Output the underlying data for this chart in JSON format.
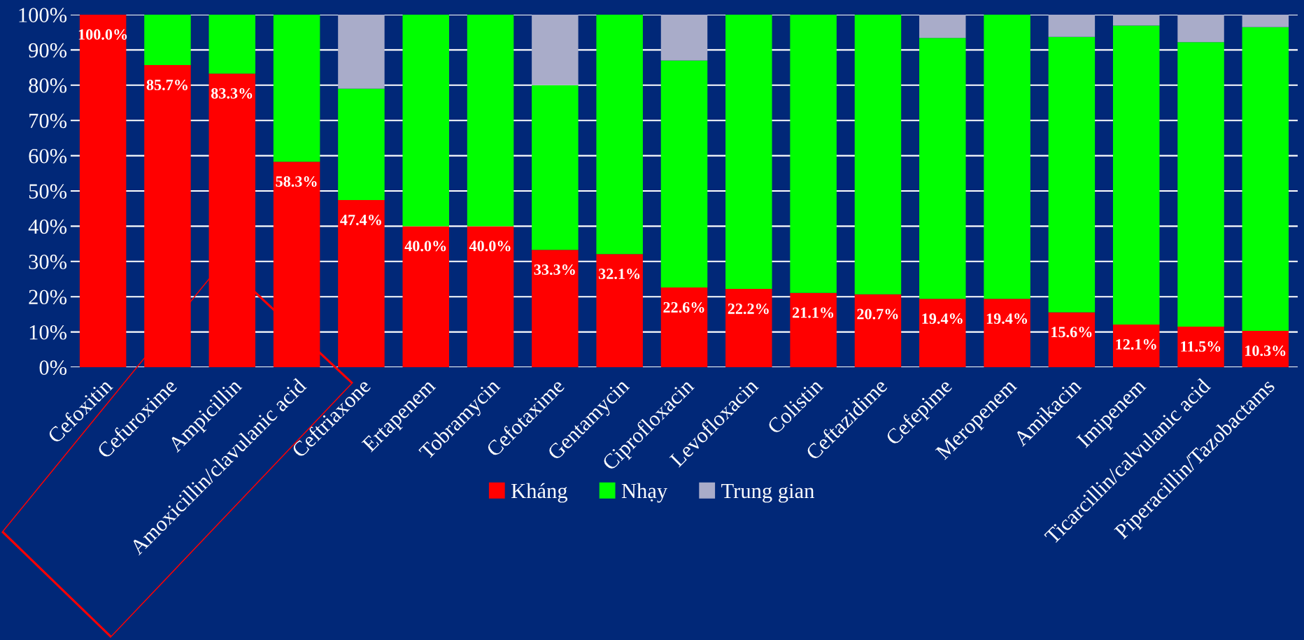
{
  "chart_data": {
    "type": "bar",
    "stacked": true,
    "categories": [
      "Cefoxitin",
      "Cefuroxime",
      "Ampicillin",
      "Amoxicillin/clavulanic acid",
      "Ceftriaxone",
      "Ertapenem",
      "Tobramycin",
      "Cefotaxime",
      "Gentamycin",
      "Ciprofloxacin",
      "Levofloxacin",
      "Colistin",
      "Ceftazidime",
      "Cefepime",
      "Meropenem",
      "Amikacin",
      "Imipenem",
      "Ticarcillin/calvulanic acid",
      "Piperacillin/Tazobactams"
    ],
    "series": [
      {
        "name": "Kháng",
        "color": "#ff0000",
        "values": [
          100.0,
          85.7,
          83.3,
          58.3,
          47.4,
          40.0,
          40.0,
          33.3,
          32.1,
          22.6,
          22.2,
          21.1,
          20.7,
          19.4,
          19.4,
          15.6,
          12.1,
          11.5,
          10.3
        ],
        "value_labels": [
          "100.0%",
          "85.7%",
          "83.3%",
          "58.3%",
          "47.4%",
          "40.0%",
          "40.0%",
          "33.3%",
          "32.1%",
          "22.6%",
          "22.2%",
          "21.1%",
          "20.7%",
          "19.4%",
          "19.4%",
          "15.6%",
          "12.1%",
          "11.5%",
          "10.3%"
        ]
      },
      {
        "name": "Nhạy",
        "color": "#00ff00",
        "values": [
          0,
          14.3,
          16.7,
          41.7,
          31.6,
          60.0,
          60.0,
          46.7,
          67.9,
          64.4,
          77.8,
          78.9,
          79.3,
          74.0,
          80.6,
          78.1,
          84.8,
          80.7,
          86.2
        ]
      },
      {
        "name": "Trung gian",
        "color": "#a9acc9",
        "values": [
          0,
          0,
          0,
          0,
          21.0,
          0,
          0,
          20.0,
          0,
          13.0,
          0,
          0,
          0,
          6.6,
          0,
          6.3,
          3.1,
          7.8,
          3.5
        ]
      }
    ],
    "ylim": [
      0,
      100
    ],
    "yticks": [
      {
        "value": 0,
        "label": "0%"
      },
      {
        "value": 10,
        "label": "10%"
      },
      {
        "value": 20,
        "label": "20%"
      },
      {
        "value": 30,
        "label": "30%"
      },
      {
        "value": 40,
        "label": "40%"
      },
      {
        "value": 50,
        "label": "50%"
      },
      {
        "value": 60,
        "label": "60%"
      },
      {
        "value": 70,
        "label": "70%"
      },
      {
        "value": 80,
        "label": "80%"
      },
      {
        "value": 90,
        "label": "90%"
      },
      {
        "value": 100,
        "label": "100%"
      }
    ],
    "grid": "y",
    "legend": "bottom"
  }
}
